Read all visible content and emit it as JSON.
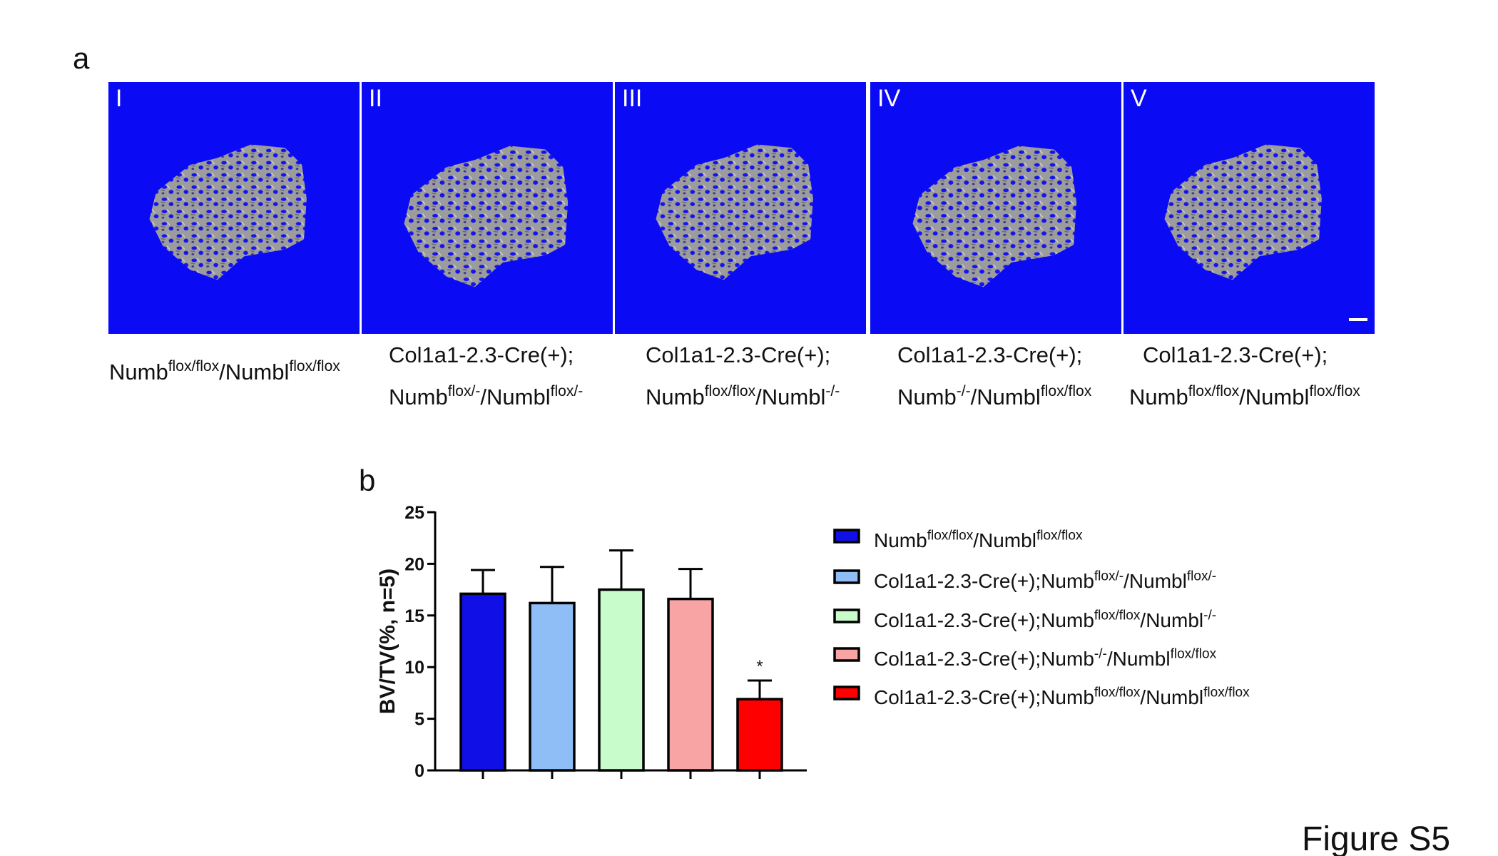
{
  "figure_label": "Figure S5",
  "panel_a": {
    "label": "a",
    "panels": [
      {
        "numeral": "I",
        "genotype": [
          [
            "Numb",
            "flox/flox",
            "/Numbl",
            "flox/flox"
          ]
        ]
      },
      {
        "numeral": "II",
        "genotype": [
          [
            "Col1a1-2.3-Cre(+);"
          ],
          [
            "Numb",
            "flox/-",
            "/Numbl",
            "flox/-"
          ]
        ]
      },
      {
        "numeral": "III",
        "genotype": [
          [
            "Col1a1-2.3-Cre(+);"
          ],
          [
            "Numb",
            "flox/flox",
            "/Numbl",
            "-/-"
          ]
        ]
      },
      {
        "numeral": "IV",
        "genotype": [
          [
            "Col1a1-2.3-Cre(+);"
          ],
          [
            "Numb",
            "-/-",
            "/Numbl",
            "flox/flox"
          ]
        ]
      },
      {
        "numeral": "V",
        "genotype": [
          [
            "Col1a1-2.3-Cre(+);"
          ],
          [
            "Numb",
            "flox/flox",
            "/Numbl",
            "flox/flox"
          ]
        ]
      }
    ]
  },
  "chart_data": {
    "type": "bar",
    "panel_label": "b",
    "ylabel": "BV/TV(%, n=5)",
    "categories": [
      [
        "Numb",
        "flox/flox",
        "/Numbl",
        "flox/flox"
      ],
      [
        "Col1a1-2.3-Cre(+);Numb",
        "flox/-",
        "/Numbl",
        "flox/-"
      ],
      [
        "Col1a1-2.3-Cre(+);Numb",
        "flox/flox",
        "/Numbl",
        "-/-"
      ],
      [
        "Col1a1-2.3-Cre(+);Numb",
        "-/-",
        "/Numbl",
        "flox/flox"
      ],
      [
        "Col1a1-2.3-Cre(+);Numb",
        "flox/flox",
        "/Numbl",
        "flox/flox"
      ]
    ],
    "values": [
      17.1,
      16.2,
      17.5,
      16.6,
      6.9
    ],
    "errors": [
      2.3,
      3.5,
      3.8,
      2.9,
      1.8
    ],
    "colors": [
      "#1010e6",
      "#8fbdf5",
      "#c8fcca",
      "#f8a4a4",
      "#ff0000"
    ],
    "annotations": [
      null,
      null,
      null,
      null,
      "*"
    ],
    "ylim": [
      0,
      25
    ],
    "yticks": [
      0,
      5,
      10,
      15,
      20,
      25
    ]
  }
}
